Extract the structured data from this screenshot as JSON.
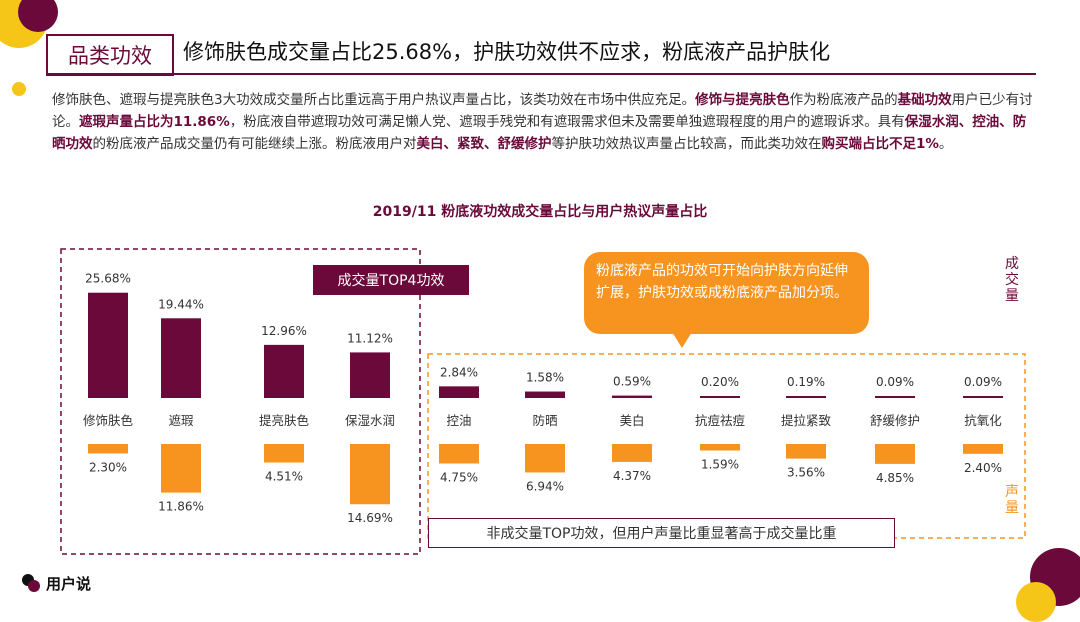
{
  "header": {
    "tag": "品类功效",
    "title": "修饰肤色成交量占比25.68%，护肤功效供不应求，粉底液产品护肤化"
  },
  "intro": {
    "p1": "修饰肤色、遮瑕与提亮肤色3大功效成交量所占比重远高于用户热议声量占比，该类功效在市场中供应充足。",
    "b1": "修饰与提亮肤色",
    "p2": "作为粉底液产品的",
    "b2": "基础功效",
    "p3": "用户已少有讨论。",
    "b3": "遮瑕声量占比为11.86%",
    "p4": "，粉底液自带遮瑕功效可满足懒人党、遮瑕手残党和有遮瑕需求但未及需要单独遮瑕程度的用户的遮瑕诉求。具有",
    "b4": "保湿水润、控油、防晒功效",
    "p5": "的粉底液产品成交量仍有可能继续上涨。粉底液用户对",
    "b5": "美白、紧致、舒缓修护",
    "p6": "等护肤功效热议声量占比较高，而此类功效在",
    "b6": "购买端占比不足1%",
    "p7": "。"
  },
  "annotations": {
    "top4_label": "成交量TOP4功效",
    "callout": "粉底液产品的功效可开始向护肤方向延伸扩展，护肤功效或成粉底液产品加分项。",
    "bottom_note": "非成交量TOP功效，但用户声量比重显著高于成交量比重"
  },
  "logo": {
    "text": "用户说"
  },
  "colors": {
    "primary": "#6b0a3a",
    "accent": "#f79420",
    "yellow": "#f5c518"
  },
  "chart_data": {
    "type": "bar",
    "title": "2019/11 粉底液功效成交量占比与用户热议声量占比",
    "categories": [
      "修饰肤色",
      "遮瑕",
      "提亮肤色",
      "保湿水润",
      "控油",
      "防晒",
      "美白",
      "抗痘祛痘",
      "提拉紧致",
      "舒缓修护",
      "抗氧化"
    ],
    "series": [
      {
        "name": "成交量",
        "values": [
          25.68,
          19.44,
          12.96,
          11.12,
          2.84,
          1.58,
          0.59,
          0.2,
          0.19,
          0.09,
          0.09
        ]
      },
      {
        "name": "声量",
        "values": [
          2.3,
          11.86,
          4.51,
          14.69,
          4.75,
          6.94,
          4.37,
          1.59,
          3.56,
          4.85,
          2.4
        ]
      }
    ],
    "unit": "%",
    "legend": "right"
  }
}
